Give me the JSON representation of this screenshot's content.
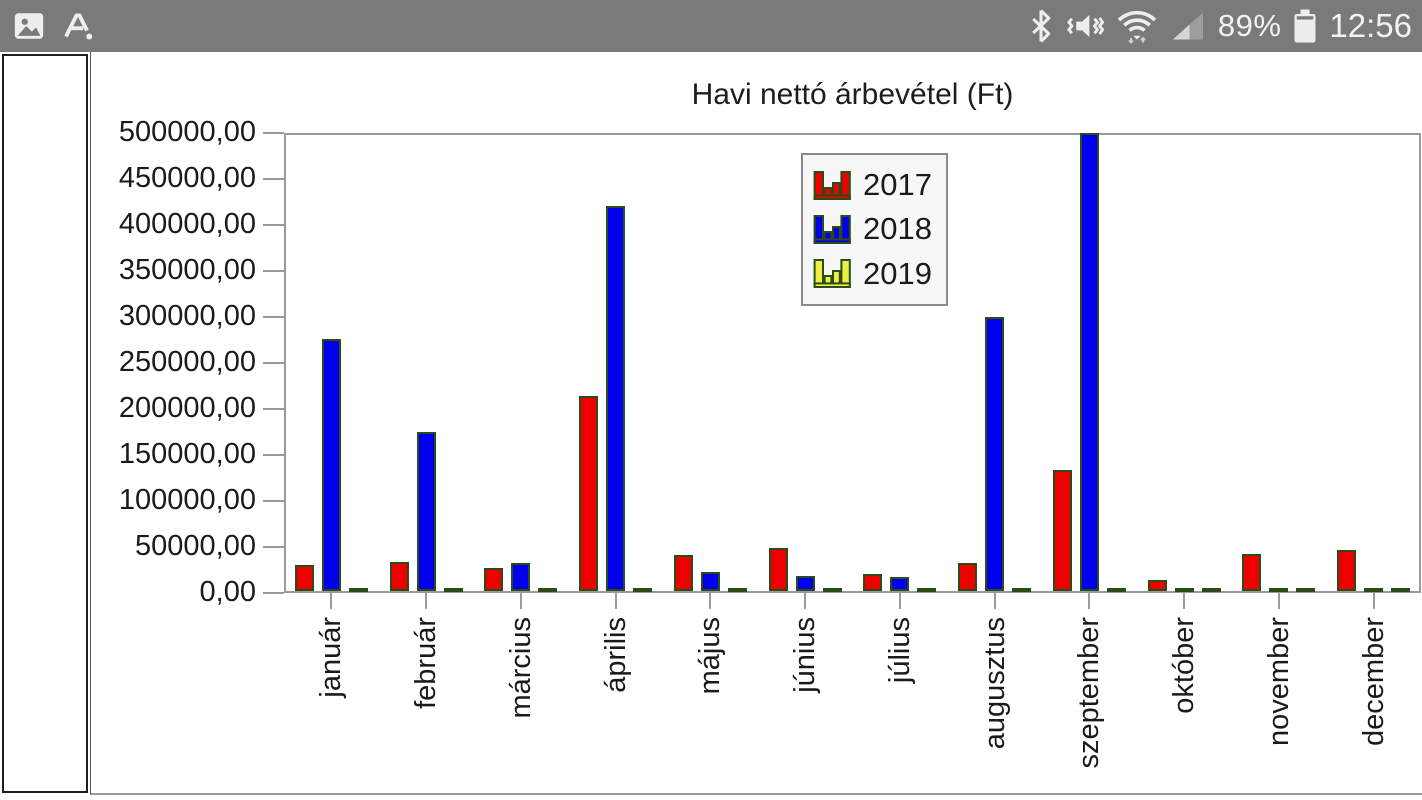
{
  "status_bar": {
    "battery_percent": "89%",
    "time": "12:56",
    "left_icons": [
      "gallery-icon",
      "smart-select-icon"
    ],
    "right_icons": [
      "bluetooth-icon",
      "mute-vibrate-icon",
      "wifi-icon",
      "cell-signal-icon",
      "battery-icon"
    ],
    "bar_color": "#7a7a7a"
  },
  "chart_data": {
    "type": "bar",
    "title": "Havi nettó árbevétel (Ft)",
    "categories": [
      "január",
      "február",
      "március",
      "április",
      "május",
      "június",
      "július",
      "augusztus",
      "szeptember",
      "október",
      "november",
      "december"
    ],
    "series": [
      {
        "name": "2017",
        "color": "#ee0000",
        "values": [
          28000,
          31000,
          25000,
          212000,
          39000,
          47000,
          18000,
          30000,
          131000,
          12000,
          40000,
          45000
        ]
      },
      {
        "name": "2018",
        "color": "#0000ee",
        "values": [
          274000,
          173000,
          30000,
          419000,
          21000,
          16000,
          15000,
          298000,
          498000,
          3000,
          3000,
          3000
        ]
      },
      {
        "name": "2019",
        "color": "#eeee44",
        "values": [
          2500,
          2500,
          2500,
          2500,
          2500,
          2500,
          2500,
          2500,
          2500,
          2500,
          2500,
          2500
        ]
      }
    ],
    "xlabel": "",
    "ylabel": "",
    "ylim": [
      0,
      500000
    ],
    "y_tick_step": 50000,
    "y_ticks": [
      {
        "value": 0,
        "label": "0,00"
      },
      {
        "value": 50000,
        "label": "50000,00"
      },
      {
        "value": 100000,
        "label": "100000,00"
      },
      {
        "value": 150000,
        "label": "150000,00"
      },
      {
        "value": 200000,
        "label": "200000,00"
      },
      {
        "value": 250000,
        "label": "250000,00"
      },
      {
        "value": 300000,
        "label": "300000,00"
      },
      {
        "value": 350000,
        "label": "350000,00"
      },
      {
        "value": 400000,
        "label": "400000,00"
      },
      {
        "value": 450000,
        "label": "450000,00"
      },
      {
        "value": 500000,
        "label": "500000,00"
      }
    ],
    "grid": false,
    "legend_position": "inside-top-center",
    "bar_border_color": "#2b4c17",
    "axis_color": "#9a9a9a"
  }
}
